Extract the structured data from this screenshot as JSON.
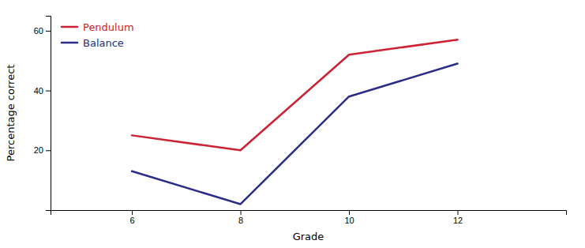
{
  "chart_data": {
    "type": "line",
    "xlabel": "Grade",
    "ylabel": "Percentage correct",
    "x": [
      6,
      8,
      10,
      12
    ],
    "series": [
      {
        "name": "Pendulum",
        "color": "#cc2233",
        "values": [
          25,
          20,
          52,
          57
        ]
      },
      {
        "name": "Balance",
        "color": "#2b2b88",
        "values": [
          13,
          2,
          38,
          49
        ]
      }
    ],
    "xlim": [
      4.5,
      14.0
    ],
    "ylim": [
      0,
      65
    ],
    "xticks": [
      6,
      8,
      10,
      12
    ],
    "yticks": [
      20,
      40,
      60
    ],
    "grid": false,
    "legend": "upper left"
  }
}
